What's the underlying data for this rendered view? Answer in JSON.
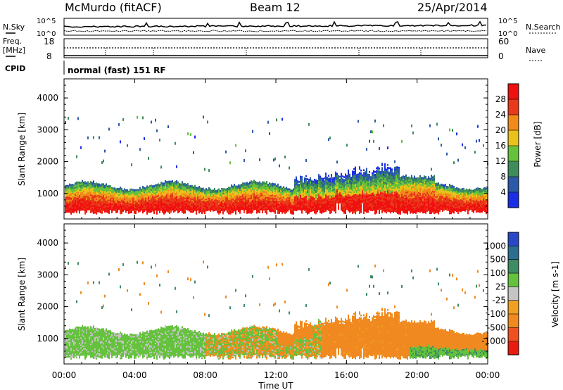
{
  "header": {
    "station": "McMurdo (fitACF)",
    "beam": "Beam 12",
    "date": "25/Apr/2014"
  },
  "noise_panel": {
    "left_label": "N.Sky",
    "right_label": "N.Search",
    "top_tick": "10^5",
    "bottom_tick": "10^0"
  },
  "freq_panel": {
    "left_label_1": "Freq.",
    "left_label_2": "[MHz]",
    "left_ticks": [
      "18",
      "8"
    ],
    "right_label": "Nave",
    "right_ticks": [
      "60",
      "0"
    ]
  },
  "cpid_panel": {
    "label": "CPID",
    "text": "normal (fast) 151 RF"
  },
  "chart_data": [
    {
      "type": "heatmap",
      "name": "power",
      "ylabel": "Slant Range [km]",
      "yticks": [
        "1000",
        "2000",
        "3000",
        "4000"
      ],
      "ylim": [
        200,
        4600
      ],
      "colorbar_label": "Power [dB]",
      "colorbar_ticks": [
        "4",
        "8",
        "12",
        "16",
        "20",
        "24",
        "28"
      ],
      "colorbar_colors": [
        "#1a2ee6",
        "#2a5aa8",
        "#3e8c5a",
        "#66c23a",
        "#e8c21a",
        "#f08a1a",
        "#e83a1a",
        "#f01010"
      ]
    },
    {
      "type": "heatmap",
      "name": "velocity",
      "ylabel": "Slant Range [km]",
      "yticks": [
        "1000",
        "2000",
        "3000",
        "4000"
      ],
      "ylim": [
        200,
        4600
      ],
      "colorbar_label": "Velocity [m s-1]",
      "colorbar_ticks": [
        "1000",
        "500",
        "100",
        "25",
        "-25",
        "-100",
        "-500",
        "-1000"
      ],
      "colorbar_colors": [
        "#2848c8",
        "#2c6e90",
        "#3e8c62",
        "#64c23c",
        "#c4c4c4",
        "#f0a020",
        "#f08a20",
        "#f05020",
        "#ea1a10"
      ]
    }
  ],
  "x_axis": {
    "label": "Time UT",
    "ticks": [
      "00:00",
      "04:00",
      "08:00",
      "12:00",
      "16:00",
      "20:00",
      "00:00"
    ]
  }
}
